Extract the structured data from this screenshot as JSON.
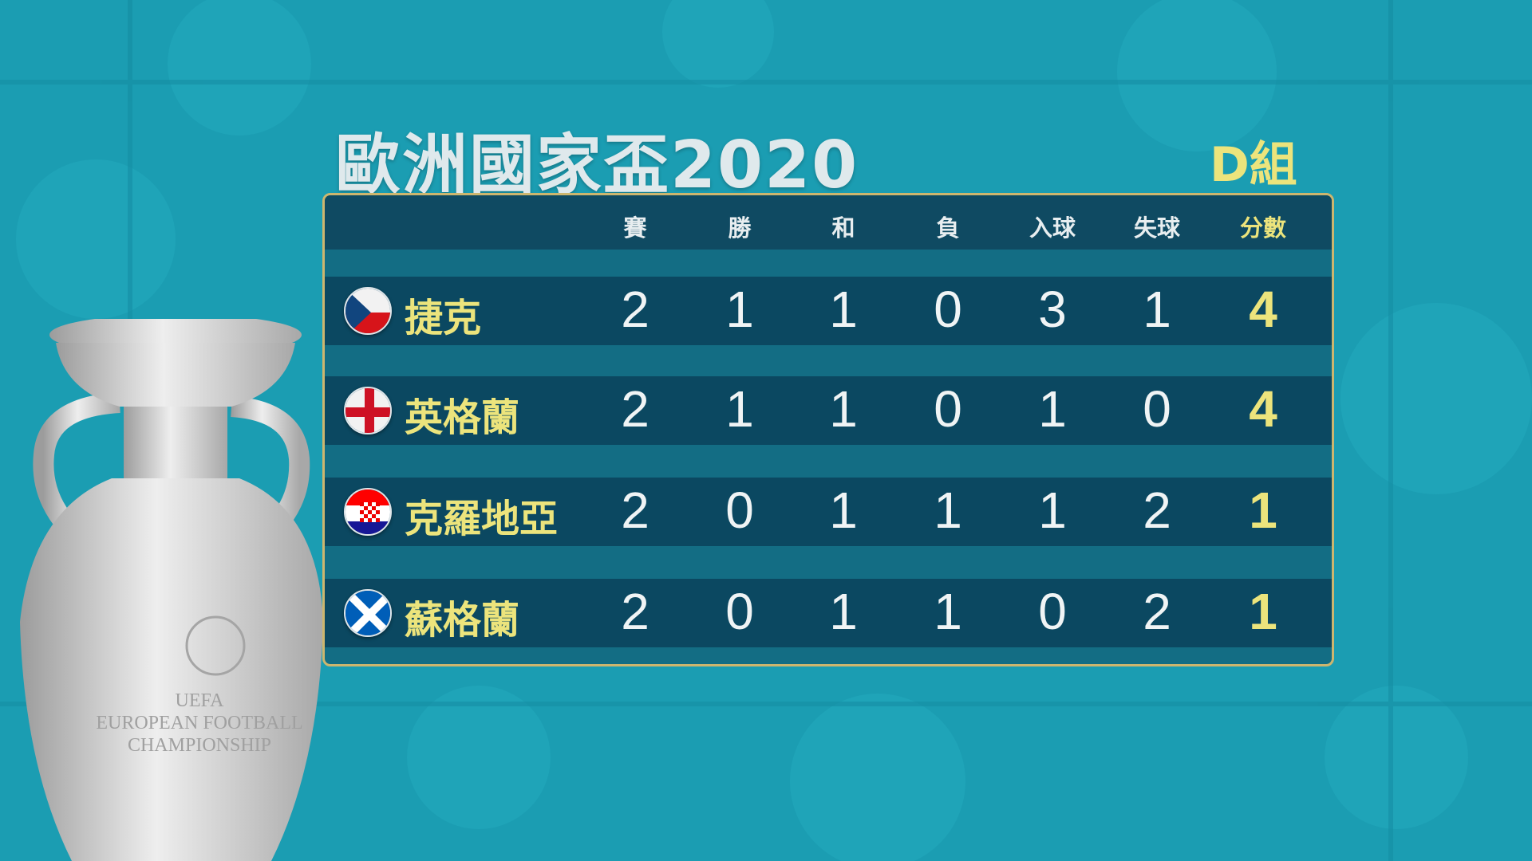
{
  "title": "歐洲國家盃2020",
  "group": "D組",
  "colors": {
    "background": "#1b9db2",
    "panel": "#0f4a62",
    "accent_yellow": "#ece47c",
    "border_gold": "#cdb66e"
  },
  "headers": [
    "賽",
    "勝",
    "和",
    "負",
    "入球",
    "失球",
    "分數"
  ],
  "rows": [
    {
      "team": "捷克",
      "flag": "czech-flag",
      "values": [
        "2",
        "1",
        "1",
        "0",
        "3",
        "1",
        "4"
      ]
    },
    {
      "team": "英格蘭",
      "flag": "england-flag",
      "values": [
        "2",
        "1",
        "1",
        "0",
        "1",
        "0",
        "4"
      ]
    },
    {
      "team": "克羅地亞",
      "flag": "croatia-flag",
      "values": [
        "2",
        "0",
        "1",
        "1",
        "1",
        "2",
        "1"
      ]
    },
    {
      "team": "蘇格蘭",
      "flag": "scotland-flag",
      "values": [
        "2",
        "0",
        "1",
        "1",
        "0",
        "2",
        "1"
      ]
    }
  ],
  "trophy_text": [
    "UEFA",
    "EUROPEAN FOOTBALL",
    "CHAMPIONSHIP"
  ]
}
